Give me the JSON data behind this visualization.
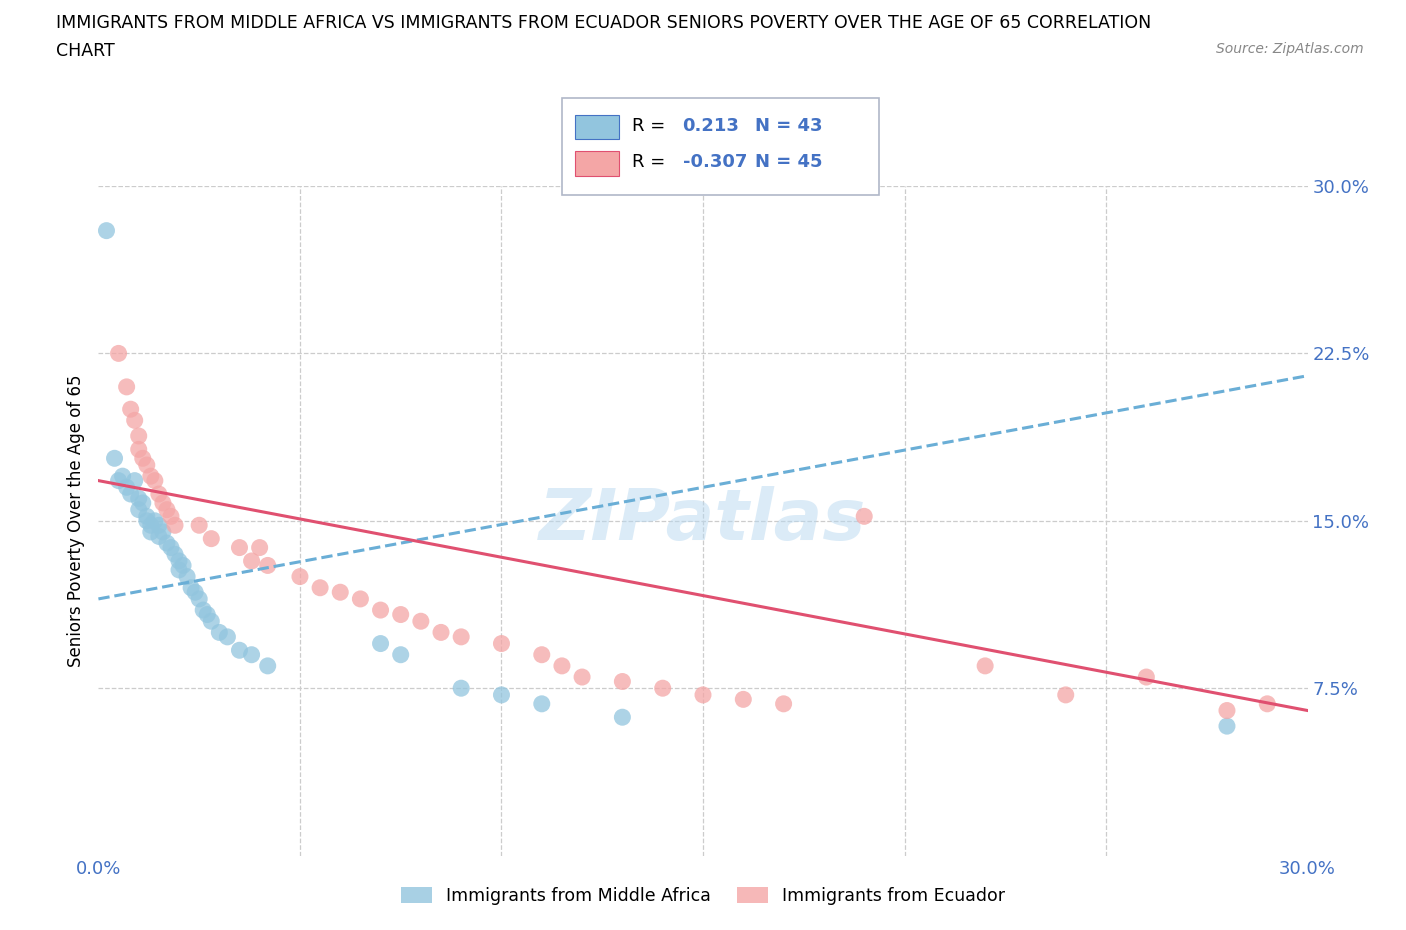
{
  "title_line1": "IMMIGRANTS FROM MIDDLE AFRICA VS IMMIGRANTS FROM ECUADOR SENIORS POVERTY OVER THE AGE OF 65 CORRELATION",
  "title_line2": "CHART",
  "source": "Source: ZipAtlas.com",
  "ylabel": "Seniors Poverty Over the Age of 65",
  "xlim": [
    0.0,
    0.3
  ],
  "ylim": [
    0.0,
    0.3
  ],
  "xticks": [
    0.0,
    0.05,
    0.1,
    0.15,
    0.2,
    0.25,
    0.3
  ],
  "yticks": [
    0.0,
    0.075,
    0.15,
    0.225,
    0.3
  ],
  "xticklabels": [
    "0.0%",
    "",
    "",
    "",
    "",
    "",
    "30.0%"
  ],
  "yticklabels": [
    "",
    "7.5%",
    "15.0%",
    "22.5%",
    "30.0%"
  ],
  "blue_R": 0.213,
  "blue_N": 43,
  "pink_R": -0.307,
  "pink_N": 45,
  "blue_color": "#92C5DE",
  "pink_color": "#F4A6A6",
  "blue_line_color": "#4472C4",
  "pink_line_color": "#E05080",
  "blue_scatter": [
    [
      0.002,
      0.28
    ],
    [
      0.004,
      0.178
    ],
    [
      0.005,
      0.168
    ],
    [
      0.006,
      0.17
    ],
    [
      0.007,
      0.165
    ],
    [
      0.008,
      0.162
    ],
    [
      0.009,
      0.168
    ],
    [
      0.01,
      0.16
    ],
    [
      0.01,
      0.155
    ],
    [
      0.011,
      0.158
    ],
    [
      0.012,
      0.15
    ],
    [
      0.012,
      0.152
    ],
    [
      0.013,
      0.145
    ],
    [
      0.013,
      0.148
    ],
    [
      0.014,
      0.15
    ],
    [
      0.015,
      0.148
    ],
    [
      0.015,
      0.143
    ],
    [
      0.016,
      0.145
    ],
    [
      0.017,
      0.14
    ],
    [
      0.018,
      0.138
    ],
    [
      0.019,
      0.135
    ],
    [
      0.02,
      0.132
    ],
    [
      0.02,
      0.128
    ],
    [
      0.021,
      0.13
    ],
    [
      0.022,
      0.125
    ],
    [
      0.023,
      0.12
    ],
    [
      0.024,
      0.118
    ],
    [
      0.025,
      0.115
    ],
    [
      0.026,
      0.11
    ],
    [
      0.027,
      0.108
    ],
    [
      0.028,
      0.105
    ],
    [
      0.03,
      0.1
    ],
    [
      0.032,
      0.098
    ],
    [
      0.035,
      0.092
    ],
    [
      0.038,
      0.09
    ],
    [
      0.042,
      0.085
    ],
    [
      0.07,
      0.095
    ],
    [
      0.075,
      0.09
    ],
    [
      0.09,
      0.075
    ],
    [
      0.1,
      0.072
    ],
    [
      0.11,
      0.068
    ],
    [
      0.13,
      0.062
    ],
    [
      0.28,
      0.058
    ]
  ],
  "pink_scatter": [
    [
      0.005,
      0.225
    ],
    [
      0.007,
      0.21
    ],
    [
      0.008,
      0.2
    ],
    [
      0.009,
      0.195
    ],
    [
      0.01,
      0.188
    ],
    [
      0.01,
      0.182
    ],
    [
      0.011,
      0.178
    ],
    [
      0.012,
      0.175
    ],
    [
      0.013,
      0.17
    ],
    [
      0.014,
      0.168
    ],
    [
      0.015,
      0.162
    ],
    [
      0.016,
      0.158
    ],
    [
      0.017,
      0.155
    ],
    [
      0.018,
      0.152
    ],
    [
      0.019,
      0.148
    ],
    [
      0.025,
      0.148
    ],
    [
      0.028,
      0.142
    ],
    [
      0.035,
      0.138
    ],
    [
      0.038,
      0.132
    ],
    [
      0.04,
      0.138
    ],
    [
      0.042,
      0.13
    ],
    [
      0.05,
      0.125
    ],
    [
      0.055,
      0.12
    ],
    [
      0.06,
      0.118
    ],
    [
      0.065,
      0.115
    ],
    [
      0.07,
      0.11
    ],
    [
      0.075,
      0.108
    ],
    [
      0.08,
      0.105
    ],
    [
      0.085,
      0.1
    ],
    [
      0.09,
      0.098
    ],
    [
      0.1,
      0.095
    ],
    [
      0.11,
      0.09
    ],
    [
      0.115,
      0.085
    ],
    [
      0.12,
      0.08
    ],
    [
      0.13,
      0.078
    ],
    [
      0.14,
      0.075
    ],
    [
      0.15,
      0.072
    ],
    [
      0.16,
      0.07
    ],
    [
      0.17,
      0.068
    ],
    [
      0.19,
      0.152
    ],
    [
      0.22,
      0.085
    ],
    [
      0.24,
      0.072
    ],
    [
      0.26,
      0.08
    ],
    [
      0.28,
      0.065
    ],
    [
      0.29,
      0.068
    ]
  ],
  "watermark": "ZIPatlas",
  "legend_label_blue": "Immigrants from Middle Africa",
  "legend_label_pink": "Immigrants from Ecuador"
}
